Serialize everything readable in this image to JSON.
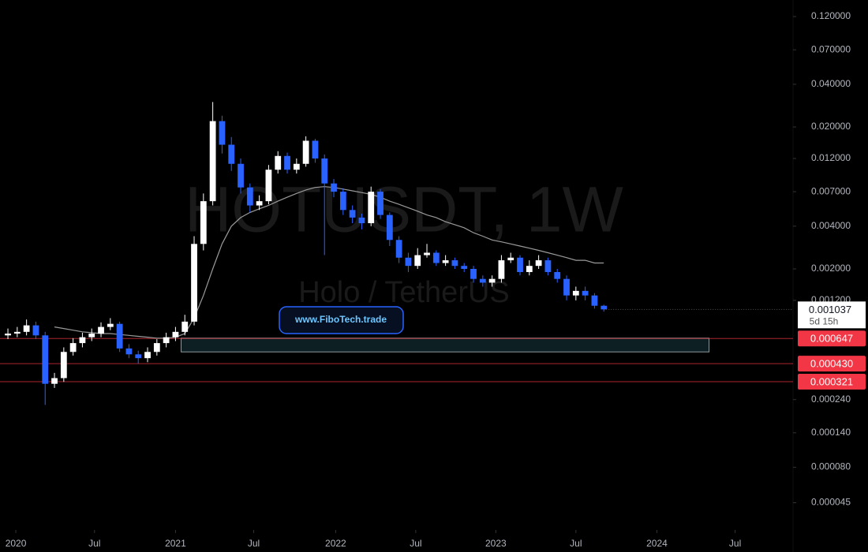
{
  "chart_data": {
    "type": "candlestick",
    "watermark": "HOTUSDT, 1W",
    "watermark_subtitle": "Holo / TetherUS",
    "link_button": "www.FiboTech.trade",
    "categories": [
      null,
      null,
      null,
      null,
      null,
      null,
      null,
      null,
      null,
      null,
      null,
      null,
      null,
      null,
      null,
      null,
      null,
      null,
      null,
      null,
      null,
      null,
      null,
      null,
      null,
      null,
      null,
      null,
      null,
      null,
      null,
      null,
      null,
      null,
      null,
      null,
      null,
      null,
      null,
      null,
      null,
      null,
      null,
      null,
      null,
      null,
      null,
      null,
      null,
      null,
      null,
      null,
      null,
      null,
      null,
      null,
      null,
      null,
      null,
      null,
      null,
      null,
      null,
      null,
      null
    ],
    "open": [
      0.00068,
      0.0007,
      0.00072,
      0.0008,
      0.00068,
      0.00031,
      0.00034,
      0.00052,
      0.0006,
      0.00066,
      0.0007,
      0.00078,
      0.00082,
      0.00055,
      0.0005,
      0.00047,
      0.00052,
      0.0006,
      0.00066,
      0.00072,
      0.00085,
      0.003,
      0.006,
      0.022,
      0.015,
      0.011,
      0.0075,
      0.0056,
      0.006,
      0.01,
      0.0125,
      0.01,
      0.011,
      0.016,
      0.012,
      0.008,
      0.007,
      0.0052,
      0.0046,
      0.0042,
      0.007,
      0.0048,
      0.0032,
      0.0024,
      0.0021,
      0.0025,
      0.0026,
      0.0022,
      0.0023,
      0.0021,
      0.002,
      0.0017,
      0.0016,
      0.0017,
      0.0023,
      0.0024,
      0.0019,
      0.0021,
      0.0023,
      0.0019,
      0.0017,
      0.0013,
      0.0014,
      0.0013,
      0.0011
    ],
    "high": [
      0.00076,
      0.00078,
      0.00088,
      0.00085,
      0.00072,
      0.00037,
      0.00056,
      0.00065,
      0.00071,
      0.00076,
      0.00084,
      0.0009,
      0.00085,
      0.00059,
      0.00053,
      0.00056,
      0.00064,
      0.00071,
      0.00078,
      0.00095,
      0.0034,
      0.0068,
      0.03,
      0.024,
      0.017,
      0.012,
      0.008,
      0.0066,
      0.0108,
      0.0135,
      0.0132,
      0.012,
      0.0172,
      0.0165,
      0.0128,
      0.0086,
      0.0074,
      0.0056,
      0.0049,
      0.0076,
      0.0073,
      0.005,
      0.0034,
      0.0026,
      0.0028,
      0.003,
      0.0027,
      0.0025,
      0.0024,
      0.0022,
      0.0021,
      0.0018,
      0.0018,
      0.0025,
      0.0026,
      0.0025,
      0.0023,
      0.0025,
      0.0024,
      0.002,
      0.0018,
      0.0015,
      0.0015,
      0.00135,
      0.00112
    ],
    "low": [
      0.00064,
      0.00066,
      0.00068,
      0.00064,
      0.00022,
      0.00029,
      0.00032,
      0.00049,
      0.00056,
      0.00062,
      0.00066,
      0.00074,
      0.00052,
      0.00047,
      0.00043,
      0.00044,
      0.00049,
      0.00056,
      0.00062,
      0.00068,
      0.0008,
      0.0027,
      0.0056,
      0.013,
      0.0098,
      0.0068,
      0.005,
      0.0052,
      0.0057,
      0.0094,
      0.0094,
      0.0094,
      0.0105,
      0.0112,
      0.0025,
      0.0064,
      0.0048,
      0.0042,
      0.0038,
      0.004,
      0.0045,
      0.0029,
      0.0022,
      0.0019,
      0.002,
      0.0024,
      0.0021,
      0.0021,
      0.002,
      0.0019,
      0.0016,
      0.0015,
      0.0015,
      0.0016,
      0.0022,
      0.0018,
      0.0018,
      0.002,
      0.0018,
      0.0016,
      0.0012,
      0.0012,
      0.0012,
      0.00105,
      0.001
    ],
    "close": [
      0.0007,
      0.00072,
      0.0008,
      0.00068,
      0.00031,
      0.00034,
      0.00052,
      0.0006,
      0.00066,
      0.0007,
      0.00078,
      0.00082,
      0.00055,
      0.0005,
      0.00047,
      0.00052,
      0.0006,
      0.00066,
      0.00072,
      0.00085,
      0.003,
      0.006,
      0.022,
      0.015,
      0.011,
      0.0075,
      0.0056,
      0.006,
      0.01,
      0.0125,
      0.01,
      0.011,
      0.016,
      0.012,
      0.008,
      0.007,
      0.0052,
      0.0046,
      0.0042,
      0.007,
      0.0048,
      0.0032,
      0.0024,
      0.0021,
      0.0025,
      0.0026,
      0.0022,
      0.0023,
      0.0021,
      0.002,
      0.0017,
      0.0016,
      0.0017,
      0.0023,
      0.0024,
      0.0019,
      0.0021,
      0.0023,
      0.0019,
      0.0017,
      0.0013,
      0.0014,
      0.0013,
      0.0011,
      0.001037
    ],
    "up_color": "#ffffff",
    "down_color": "#2962ff",
    "moving_average": {
      "color": "#9a9a9a",
      "values": [
        null,
        null,
        null,
        null,
        null,
        0.00078,
        0.00076,
        0.00074,
        0.00072,
        0.00071,
        0.0007,
        0.0007,
        0.00069,
        0.00068,
        0.00067,
        0.00066,
        0.00065,
        0.00065,
        0.00066,
        0.0007,
        0.0009,
        0.0013,
        0.002,
        0.003,
        0.004,
        0.0046,
        0.005,
        0.0053,
        0.0056,
        0.006,
        0.0064,
        0.0068,
        0.0072,
        0.0075,
        0.0076,
        0.0075,
        0.0073,
        0.0071,
        0.0069,
        0.0067,
        0.0064,
        0.006,
        0.0057,
        0.0054,
        0.0051,
        0.0048,
        0.0046,
        0.0043,
        0.0041,
        0.0039,
        0.0036,
        0.0034,
        0.0032,
        0.0031,
        0.003,
        0.0029,
        0.0028,
        0.0027,
        0.0026,
        0.0025,
        0.0024,
        0.0023,
        0.0023,
        0.0022,
        0.0022
      ]
    },
    "zone": {
      "x": [
        18.6,
        75.3
      ],
      "y": [
        0.00052,
        0.00065
      ]
    },
    "levels": [
      {
        "value": 0.000647,
        "label": "0.000647"
      },
      {
        "value": 0.00043,
        "label": "0.000430"
      },
      {
        "value": 0.000321,
        "label": "0.000321"
      }
    ],
    "level_color": "#f23645",
    "last_price": {
      "value": 0.001037,
      "label": "0.001037"
    },
    "countdown": "5d 15h",
    "log_scale": true,
    "xlim": [
      -0.85,
      84.32
    ],
    "xticks": [
      {
        "value": 0.85,
        "label": "2020"
      },
      {
        "value": 9.3,
        "label": "Jul"
      },
      {
        "value": 18,
        "label": "2021"
      },
      {
        "value": 26.4,
        "label": "Jul"
      },
      {
        "value": 35.2,
        "label": "2022"
      },
      {
        "value": 43.8,
        "label": "Jul"
      },
      {
        "value": 52.4,
        "label": "2023"
      },
      {
        "value": 61,
        "label": "Jul"
      },
      {
        "value": 69.7,
        "label": "2024"
      },
      {
        "value": 78.1,
        "label": "Jul"
      }
    ],
    "ylim": [
      2.97e-05,
      0.157
    ],
    "yticks": [
      {
        "value": 0.12,
        "label": "0.120000"
      },
      {
        "value": 0.07,
        "label": "0.070000"
      },
      {
        "value": 0.04,
        "label": "0.040000"
      },
      {
        "value": 0.02,
        "label": "0.020000"
      },
      {
        "value": 0.012,
        "label": "0.012000"
      },
      {
        "value": 0.007,
        "label": "0.007000"
      },
      {
        "value": 0.004,
        "label": "0.004000"
      },
      {
        "value": 0.002,
        "label": "0.002000"
      },
      {
        "value": 0.0012,
        "label": "0.001200"
      },
      {
        "value": 0.00024,
        "label": "0.000240"
      },
      {
        "value": 0.00014,
        "label": "0.000140"
      },
      {
        "value": 8e-05,
        "label": "0.000080"
      },
      {
        "value": 4.5e-05,
        "label": "0.000045"
      }
    ]
  }
}
